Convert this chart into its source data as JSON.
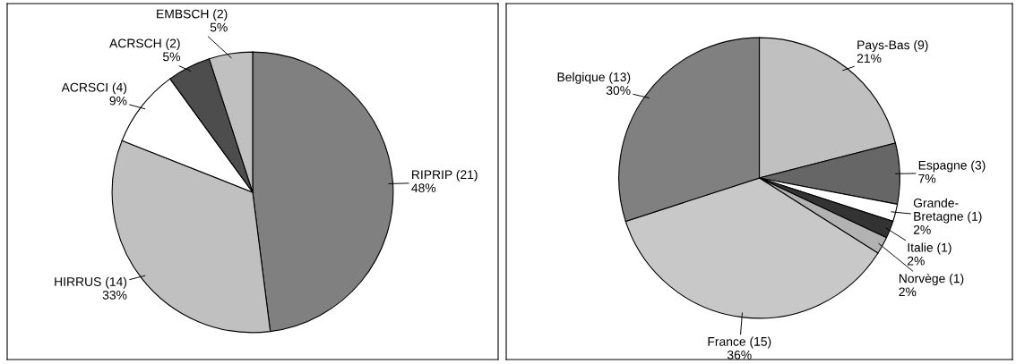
{
  "chart_data": [
    {
      "type": "pie",
      "categories": [
        "RIPRIP (21)",
        "HIRRUS (14)",
        "ACRSCI (4)",
        "ACRSCH (2)",
        "EMBSCH (2)"
      ],
      "values": [
        48,
        33,
        9,
        5,
        5
      ],
      "colors": [
        "#808080",
        "#c0c0c0",
        "#ffffff",
        "#4d4d4d",
        "#c0c0c0"
      ],
      "value_labels": [
        "48%",
        "33%",
        "9%",
        "5%",
        "5%"
      ]
    },
    {
      "type": "pie",
      "categories": [
        "Pays-Bas (9)",
        "Espagne (3)",
        "Grande-Bretagne (1)",
        "Italie (1)",
        "Norvège (1)",
        "France (15)",
        "Belgique (13)"
      ],
      "values": [
        21,
        7,
        2,
        2,
        2,
        36,
        30
      ],
      "colors": [
        "#c0c0c0",
        "#666666",
        "#ffffff",
        "#333333",
        "#b2b2b2",
        "#c8c8c8",
        "#808080"
      ],
      "value_labels": [
        "21%",
        "7%",
        "2%",
        "2%",
        "2%",
        "36%",
        "30%"
      ]
    }
  ]
}
